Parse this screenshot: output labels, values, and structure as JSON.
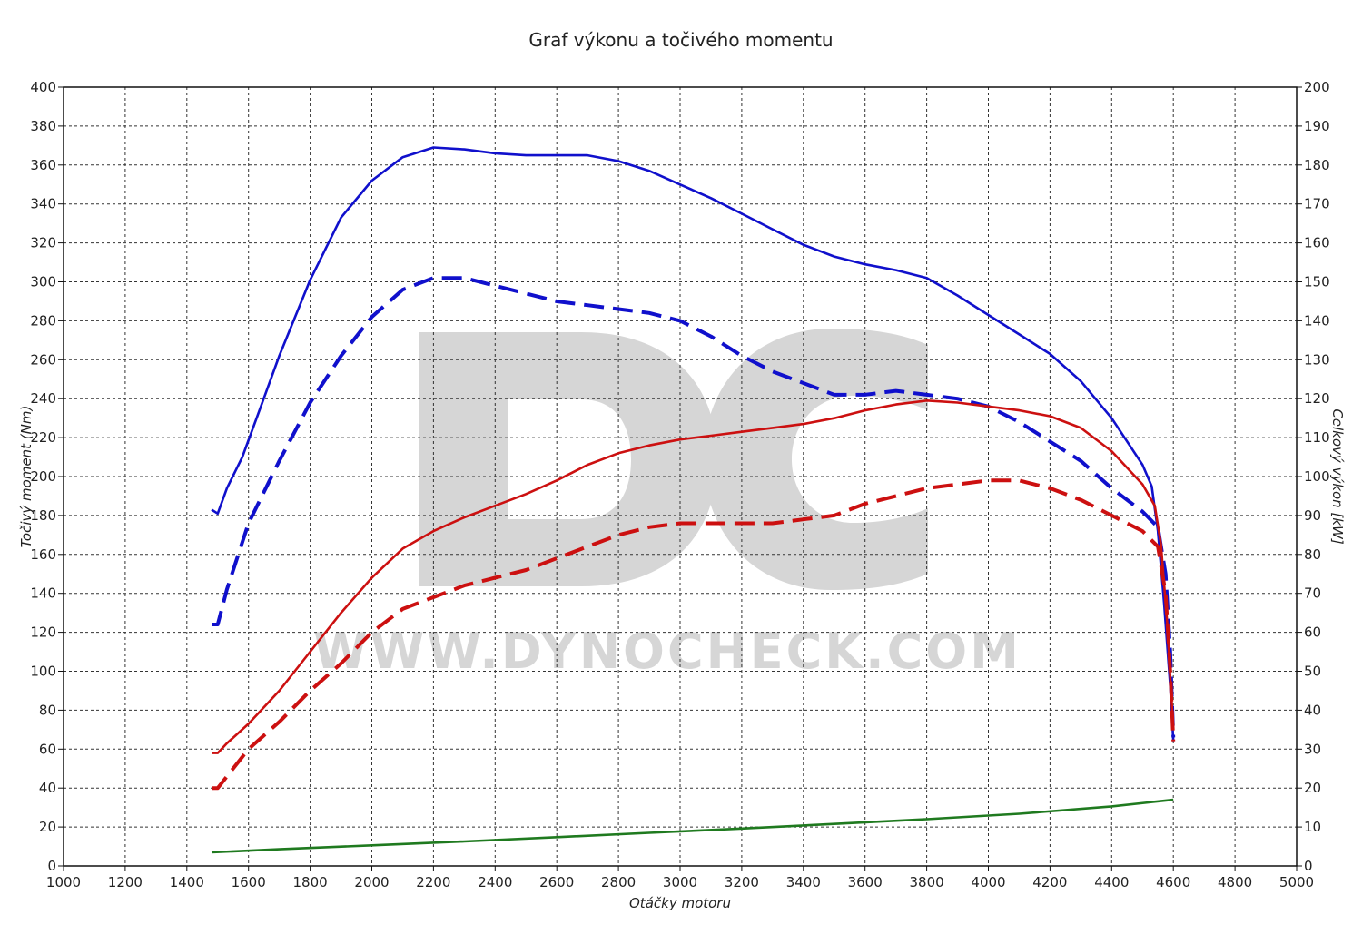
{
  "chart_data": {
    "type": "line",
    "title": "Graf výkonu a točivého momentu",
    "xlabel": "Otáčky motoru",
    "ylabel_left": "Točivý moment (Nm)",
    "ylabel_right": "Celkový výkon [kW]",
    "xlim": [
      1000,
      5000
    ],
    "ylim_left": [
      0,
      400
    ],
    "ylim_right": [
      0,
      200
    ],
    "x_ticks": [
      "1000",
      "1200",
      "1400",
      "1600",
      "1800",
      "2000",
      "2200",
      "2400",
      "2600",
      "2800",
      "3000",
      "3200",
      "3400",
      "3600",
      "3800",
      "4000",
      "4200",
      "4400",
      "4600",
      "4800",
      "5000"
    ],
    "y_left_ticks": [
      "0",
      "20",
      "40",
      "60",
      "80",
      "100",
      "120",
      "140",
      "160",
      "180",
      "200",
      "220",
      "240",
      "260",
      "280",
      "300",
      "320",
      "340",
      "360",
      "380",
      "400"
    ],
    "y_right_ticks": [
      "0",
      "10",
      "20",
      "30",
      "40",
      "50",
      "60",
      "70",
      "80",
      "90",
      "100",
      "110",
      "120",
      "130",
      "140",
      "150",
      "160",
      "170",
      "180",
      "190",
      "200"
    ],
    "grid": true,
    "watermark": {
      "logo": "DC",
      "url": "WWW.DYNOCHECK.COM"
    },
    "series": [
      {
        "color": "#1010cc",
        "dash": "solid",
        "axis": "left",
        "points": [
          [
            1480,
            183
          ],
          [
            1500,
            181
          ],
          [
            1530,
            194
          ],
          [
            1580,
            210
          ],
          [
            1640,
            236
          ],
          [
            1700,
            262
          ],
          [
            1800,
            301
          ],
          [
            1900,
            333
          ],
          [
            2000,
            352
          ],
          [
            2100,
            364
          ],
          [
            2200,
            369
          ],
          [
            2300,
            368
          ],
          [
            2400,
            366
          ],
          [
            2500,
            365
          ],
          [
            2600,
            365
          ],
          [
            2700,
            365
          ],
          [
            2800,
            362
          ],
          [
            2900,
            357
          ],
          [
            3000,
            350
          ],
          [
            3100,
            343
          ],
          [
            3200,
            335
          ],
          [
            3300,
            327
          ],
          [
            3400,
            319
          ],
          [
            3500,
            313
          ],
          [
            3600,
            309
          ],
          [
            3700,
            306
          ],
          [
            3800,
            302
          ],
          [
            3900,
            293
          ],
          [
            4000,
            283
          ],
          [
            4100,
            273
          ],
          [
            4200,
            263
          ],
          [
            4300,
            249
          ],
          [
            4400,
            230
          ],
          [
            4500,
            206
          ],
          [
            4530,
            195
          ],
          [
            4550,
            172
          ],
          [
            4570,
            135
          ],
          [
            4590,
            92
          ],
          [
            4600,
            64
          ]
        ]
      },
      {
        "color": "#1010cc",
        "dash": "dashed",
        "axis": "right",
        "points": [
          [
            1480,
            62
          ],
          [
            1500,
            62
          ],
          [
            1530,
            71
          ],
          [
            1600,
            88
          ],
          [
            1700,
            104
          ],
          [
            1800,
            119
          ],
          [
            1900,
            131
          ],
          [
            2000,
            141
          ],
          [
            2100,
            148
          ],
          [
            2200,
            151
          ],
          [
            2300,
            151
          ],
          [
            2400,
            149
          ],
          [
            2500,
            147
          ],
          [
            2600,
            145
          ],
          [
            2700,
            144
          ],
          [
            2800,
            143
          ],
          [
            2900,
            142
          ],
          [
            3000,
            140
          ],
          [
            3100,
            136
          ],
          [
            3200,
            131
          ],
          [
            3300,
            127
          ],
          [
            3400,
            124
          ],
          [
            3500,
            121
          ],
          [
            3600,
            121
          ],
          [
            3700,
            122
          ],
          [
            3800,
            121
          ],
          [
            3900,
            120
          ],
          [
            4000,
            118
          ],
          [
            4100,
            114
          ],
          [
            4200,
            109
          ],
          [
            4300,
            104
          ],
          [
            4400,
            97
          ],
          [
            4500,
            91
          ],
          [
            4550,
            87
          ],
          [
            4575,
            75
          ],
          [
            4590,
            55
          ],
          [
            4600,
            33
          ]
        ]
      },
      {
        "color": "#cc1010",
        "dash": "solid",
        "axis": "left",
        "points": [
          [
            1480,
            58
          ],
          [
            1500,
            58
          ],
          [
            1530,
            63
          ],
          [
            1600,
            73
          ],
          [
            1700,
            90
          ],
          [
            1800,
            110
          ],
          [
            1900,
            130
          ],
          [
            2000,
            148
          ],
          [
            2100,
            163
          ],
          [
            2200,
            172
          ],
          [
            2300,
            179
          ],
          [
            2400,
            185
          ],
          [
            2500,
            191
          ],
          [
            2600,
            198
          ],
          [
            2700,
            206
          ],
          [
            2800,
            212
          ],
          [
            2900,
            216
          ],
          [
            3000,
            219
          ],
          [
            3100,
            221
          ],
          [
            3200,
            223
          ],
          [
            3300,
            225
          ],
          [
            3400,
            227
          ],
          [
            3500,
            230
          ],
          [
            3600,
            234
          ],
          [
            3700,
            237
          ],
          [
            3800,
            239
          ],
          [
            3900,
            238
          ],
          [
            4000,
            236
          ],
          [
            4100,
            234
          ],
          [
            4200,
            231
          ],
          [
            4300,
            225
          ],
          [
            4400,
            213
          ],
          [
            4500,
            196
          ],
          [
            4540,
            185
          ],
          [
            4560,
            165
          ],
          [
            4580,
            125
          ],
          [
            4600,
            70
          ]
        ]
      },
      {
        "color": "#cc1010",
        "dash": "dashed",
        "axis": "right",
        "points": [
          [
            1480,
            20
          ],
          [
            1500,
            20
          ],
          [
            1550,
            25
          ],
          [
            1600,
            30
          ],
          [
            1700,
            37
          ],
          [
            1800,
            45
          ],
          [
            1900,
            52
          ],
          [
            2000,
            60
          ],
          [
            2100,
            66
          ],
          [
            2200,
            69
          ],
          [
            2300,
            72
          ],
          [
            2400,
            74
          ],
          [
            2500,
            76
          ],
          [
            2600,
            79
          ],
          [
            2700,
            82
          ],
          [
            2800,
            85
          ],
          [
            2900,
            87
          ],
          [
            3000,
            88
          ],
          [
            3100,
            88
          ],
          [
            3200,
            88
          ],
          [
            3300,
            88
          ],
          [
            3400,
            89
          ],
          [
            3500,
            90
          ],
          [
            3600,
            93
          ],
          [
            3700,
            95
          ],
          [
            3800,
            97
          ],
          [
            3900,
            98
          ],
          [
            4000,
            99
          ],
          [
            4100,
            99
          ],
          [
            4200,
            97
          ],
          [
            4300,
            94
          ],
          [
            4400,
            90
          ],
          [
            4500,
            86
          ],
          [
            4550,
            82
          ],
          [
            4575,
            70
          ],
          [
            4590,
            50
          ],
          [
            4600,
            32
          ]
        ]
      },
      {
        "color": "#1f7a1f",
        "dash": "solid",
        "axis": "right",
        "points": [
          [
            1480,
            3.5
          ],
          [
            1700,
            4.3
          ],
          [
            2000,
            5.3
          ],
          [
            2300,
            6.3
          ],
          [
            2600,
            7.4
          ],
          [
            2900,
            8.5
          ],
          [
            3200,
            9.6
          ],
          [
            3500,
            10.8
          ],
          [
            3800,
            12
          ],
          [
            4100,
            13.4
          ],
          [
            4400,
            15.3
          ],
          [
            4600,
            17.0
          ]
        ]
      }
    ]
  }
}
